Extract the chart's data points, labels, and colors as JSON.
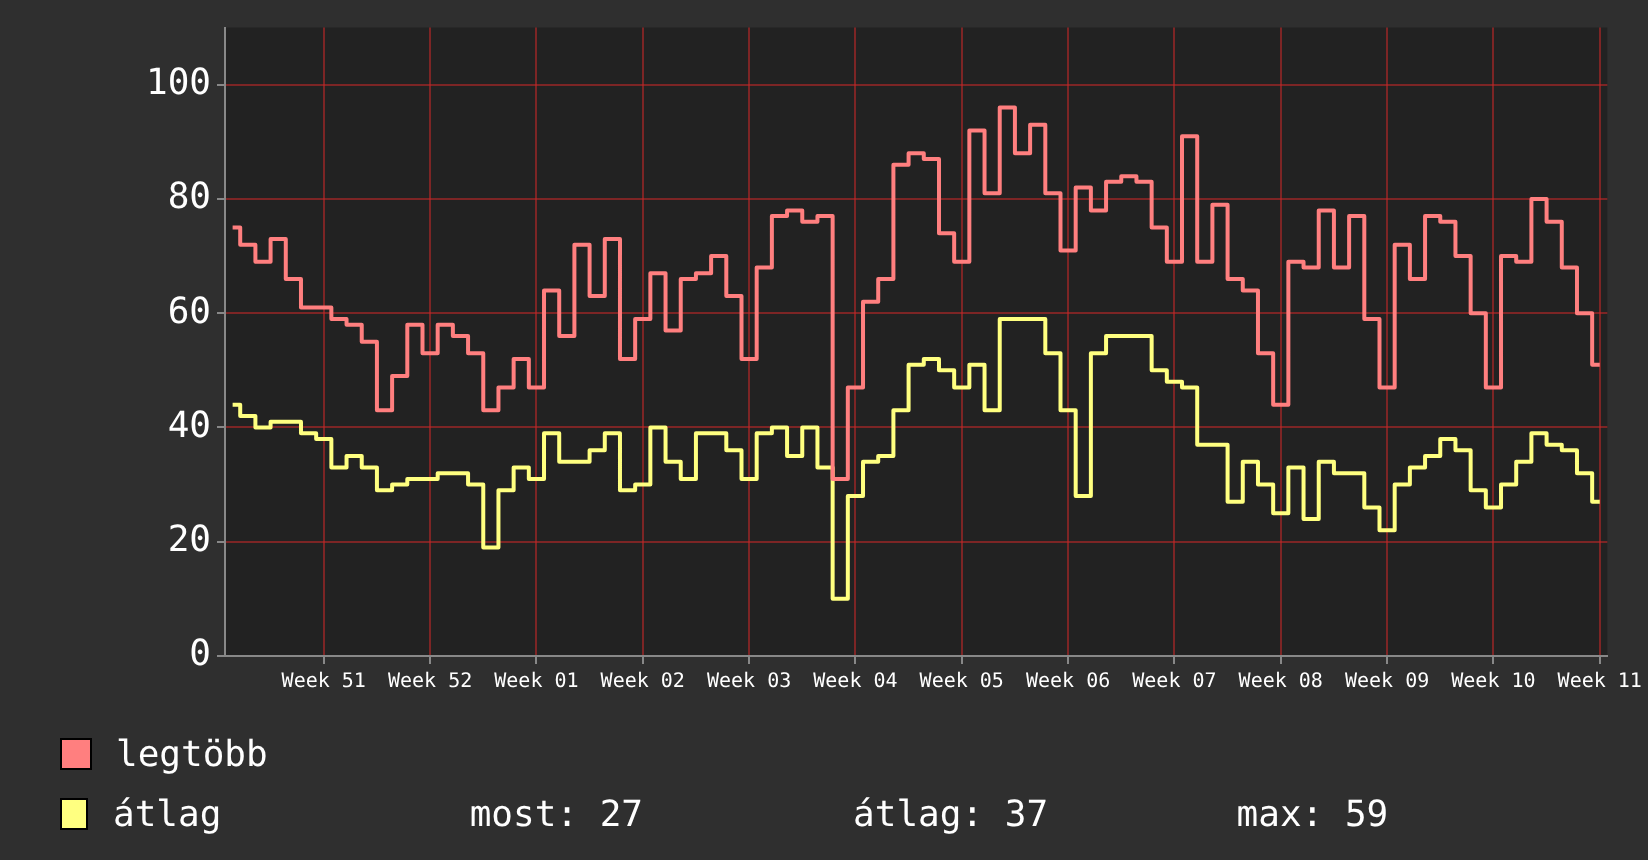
{
  "chart_data": {
    "type": "step",
    "categories": [
      null,
      null,
      null,
      null,
      null,
      null,
      "Week 51",
      null,
      null,
      null,
      null,
      null,
      null,
      "Week 52",
      null,
      null,
      null,
      null,
      null,
      null,
      "Week 01",
      null,
      null,
      null,
      null,
      null,
      null,
      "Week 02",
      null,
      null,
      null,
      null,
      null,
      null,
      "Week 03",
      null,
      null,
      null,
      null,
      null,
      null,
      "Week 04",
      null,
      null,
      null,
      null,
      null,
      null,
      "Week 05",
      null,
      null,
      null,
      null,
      null,
      null,
      "Week 06",
      null,
      null,
      null,
      null,
      null,
      null,
      "Week 07",
      null,
      null,
      null,
      null,
      null,
      null,
      "Week 08",
      null,
      null,
      null,
      null,
      null,
      null,
      "Week 09",
      null,
      null,
      null,
      null,
      null,
      null,
      "Week 10",
      null,
      null,
      null,
      null,
      null,
      null,
      "Week 11"
    ],
    "series": [
      {
        "name": "legtöbb",
        "color": "#ff7f7f",
        "values": [
          75,
          72,
          69,
          73,
          66,
          61,
          61,
          59,
          58,
          55,
          43,
          49,
          58,
          53,
          58,
          56,
          53,
          43,
          47,
          52,
          47,
          64,
          56,
          72,
          63,
          73,
          52,
          59,
          67,
          57,
          66,
          67,
          70,
          63,
          52,
          68,
          77,
          78,
          76,
          77,
          31,
          47,
          62,
          66,
          86,
          88,
          87,
          74,
          69,
          92,
          81,
          96,
          88,
          93,
          81,
          71,
          82,
          78,
          83,
          84,
          83,
          75,
          69,
          91,
          69,
          79,
          66,
          64,
          53,
          44,
          69,
          68,
          78,
          68,
          77,
          59,
          47,
          72,
          66,
          77,
          76,
          70,
          60,
          47,
          70,
          69,
          80,
          76,
          68,
          60,
          51
        ]
      },
      {
        "name": "átlag",
        "color": "#ffff80",
        "values": [
          44,
          42,
          40,
          41,
          41,
          39,
          38,
          33,
          35,
          33,
          29,
          30,
          31,
          31,
          32,
          32,
          30,
          19,
          29,
          33,
          31,
          39,
          34,
          34,
          36,
          39,
          29,
          30,
          40,
          34,
          31,
          39,
          39,
          36,
          31,
          39,
          40,
          35,
          40,
          33,
          10,
          28,
          34,
          35,
          43,
          51,
          52,
          50,
          47,
          51,
          43,
          59,
          59,
          59,
          53,
          43,
          28,
          53,
          56,
          56,
          56,
          50,
          48,
          47,
          37,
          37,
          27,
          34,
          30,
          25,
          33,
          24,
          34,
          32,
          32,
          26,
          22,
          30,
          33,
          35,
          38,
          36,
          29,
          26,
          30,
          34,
          39,
          37,
          36,
          32,
          27
        ]
      }
    ],
    "ylim": [
      0,
      110
    ],
    "yticks": [
      0,
      20,
      40,
      60,
      80,
      100
    ],
    "grid": true,
    "legend": "bottom",
    "annotations": [
      "most: 27",
      "átlag: 37",
      "max: 59"
    ]
  }
}
